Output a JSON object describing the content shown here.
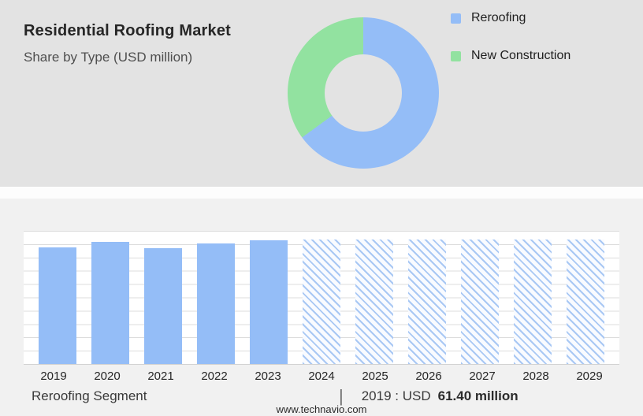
{
  "header": {
    "title": "Residential Roofing Market",
    "subtitle": "Share by Type (USD million)"
  },
  "colors": {
    "accent_blue": "#94bdf7",
    "accent_green": "#92e2a0",
    "top_band_bg": "#e3e3e3",
    "bottom_band_bg": "#f1f1f1",
    "plot_bg": "#ffffff"
  },
  "chart_data": [
    {
      "type": "pie",
      "donut": true,
      "title": "Share by Type (USD million)",
      "labels": [
        "Reroofing",
        "New Construction"
      ],
      "values": [
        65,
        35
      ],
      "colors": [
        "#94bdf7",
        "#92e2a0"
      ],
      "legend_position": "right"
    },
    {
      "type": "bar",
      "title": "Reroofing Segment (USD million)",
      "categories": [
        "2019",
        "2020",
        "2021",
        "2022",
        "2023",
        "2024",
        "2025",
        "2026",
        "2027",
        "2028",
        "2029"
      ],
      "values": [
        61.4,
        64.2,
        60.9,
        63.4,
        65.2,
        65.5,
        65.5,
        65.5,
        65.5,
        65.5,
        65.5
      ],
      "historical_count": 5,
      "forecast_style": "hatched",
      "bar_color": "#94bdf7",
      "hatch_color": "#a9c8f4",
      "ylim": [
        0,
        70
      ],
      "grid": true
    }
  ],
  "footer": {
    "segment_label": "Reroofing Segment",
    "separator": "|",
    "value_prefix": "2019 : USD",
    "value_bold": "61.40 million",
    "website": "www.technavio.com"
  }
}
